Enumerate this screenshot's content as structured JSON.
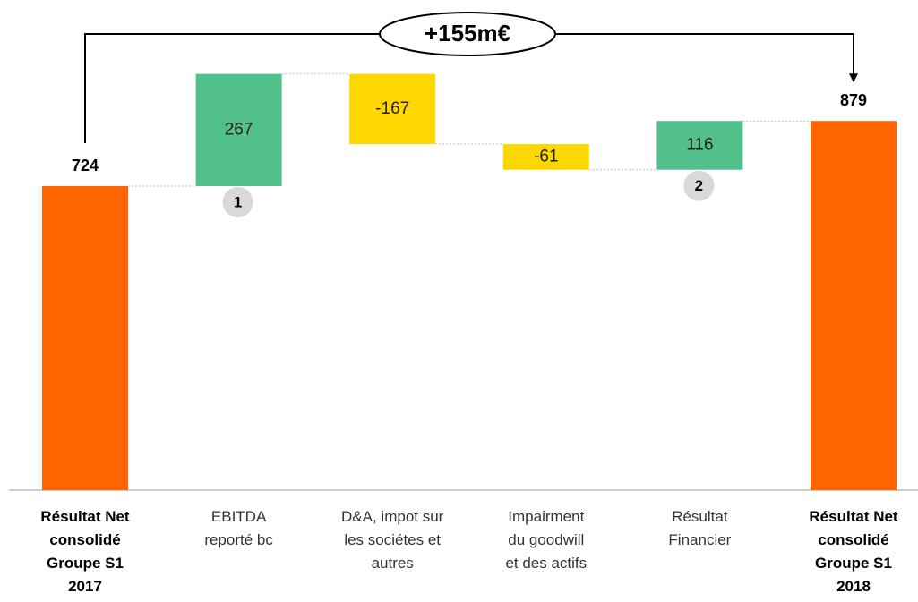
{
  "chart_data": {
    "type": "waterfall",
    "categories": [
      "Résultat Net\nconsolidé\nGroupe S1\n2017",
      "EBITDA\nreporté bc",
      "D&A, impot sur\nles sociétes et\nautres",
      "Impairment\ndu goodwill\net des actifs",
      "Résultat\nFinancier",
      "Résultat Net\nconsolidé\nGroupe S1\n2018"
    ],
    "values": [
      724,
      267,
      -167,
      -61,
      116,
      879
    ],
    "colors": [
      "#ff6600",
      "#52c08a",
      "#ffd700",
      "#ffd700",
      "#52c08a",
      "#ff6600"
    ],
    "badges": [
      null,
      "1",
      null,
      null,
      "2",
      null
    ],
    "annotation": "+155m€"
  }
}
